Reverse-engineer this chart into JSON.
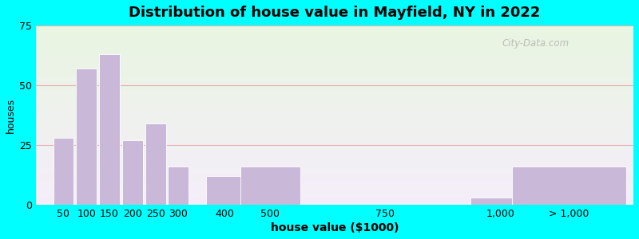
{
  "title": "Distribution of house value in Mayfield, NY in 2022",
  "xlabel": "house value ($1000)",
  "ylabel": "houses",
  "bar_centers": [
    50,
    100,
    150,
    200,
    250,
    300,
    400,
    500,
    750,
    1000,
    1150
  ],
  "bar_widths": [
    45,
    45,
    45,
    45,
    45,
    45,
    80,
    130,
    220,
    130,
    250
  ],
  "bar_values": [
    28,
    57,
    63,
    27,
    34,
    16,
    12,
    16,
    0,
    3,
    16
  ],
  "xtick_positions": [
    50,
    100,
    150,
    200,
    250,
    300,
    400,
    500,
    750,
    1000,
    1150
  ],
  "xtick_labels": [
    "50",
    "100",
    "150",
    "200",
    "250",
    "300",
    "400",
    "500",
    "750",
    "1,000",
    "> 1,000"
  ],
  "bar_color": "#c9b8d8",
  "bar_edgecolor": "#ffffff",
  "ylim": [
    0,
    75
  ],
  "yticks": [
    0,
    25,
    50,
    75
  ],
  "background_outer": "#00ffff",
  "grid_color": "#e8a0a0",
  "title_fontsize": 13,
  "axis_fontsize": 9,
  "watermark": "City-Data.com",
  "xlim": [
    -10,
    1290
  ]
}
